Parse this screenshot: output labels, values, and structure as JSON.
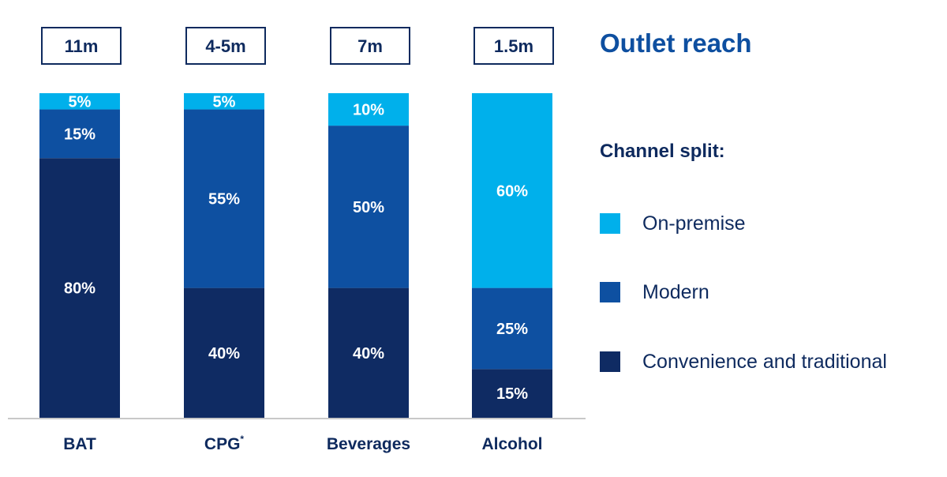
{
  "chart_data": {
    "type": "bar",
    "stacked": true,
    "title": "Outlet reach",
    "legend_title": "Channel split:",
    "categories": [
      "BAT",
      "CPG",
      "Beverages",
      "Alcohol"
    ],
    "category_suffix": [
      "",
      "*",
      "",
      ""
    ],
    "outlet_reach": [
      "11m",
      "4-5m",
      "7m",
      "1.5m"
    ],
    "series": [
      {
        "name": "Convenience and traditional",
        "color": "#0f2b63",
        "values": [
          80,
          40,
          40,
          15
        ],
        "labels": [
          "80%",
          "40%",
          "40%",
          "15%"
        ]
      },
      {
        "name": "Modern",
        "color": "#0e50a1",
        "values": [
          15,
          55,
          50,
          25
        ],
        "labels": [
          "15%",
          "55%",
          "50%",
          "25%"
        ]
      },
      {
        "name": "On-premise",
        "color": "#00b0eb",
        "values": [
          5,
          5,
          10,
          60
        ],
        "labels": [
          "5%",
          "5%",
          "10%",
          "60%"
        ]
      }
    ],
    "legend_order": [
      2,
      1,
      0
    ],
    "ylim": [
      0,
      100
    ],
    "xlabel": "",
    "ylabel": ""
  }
}
